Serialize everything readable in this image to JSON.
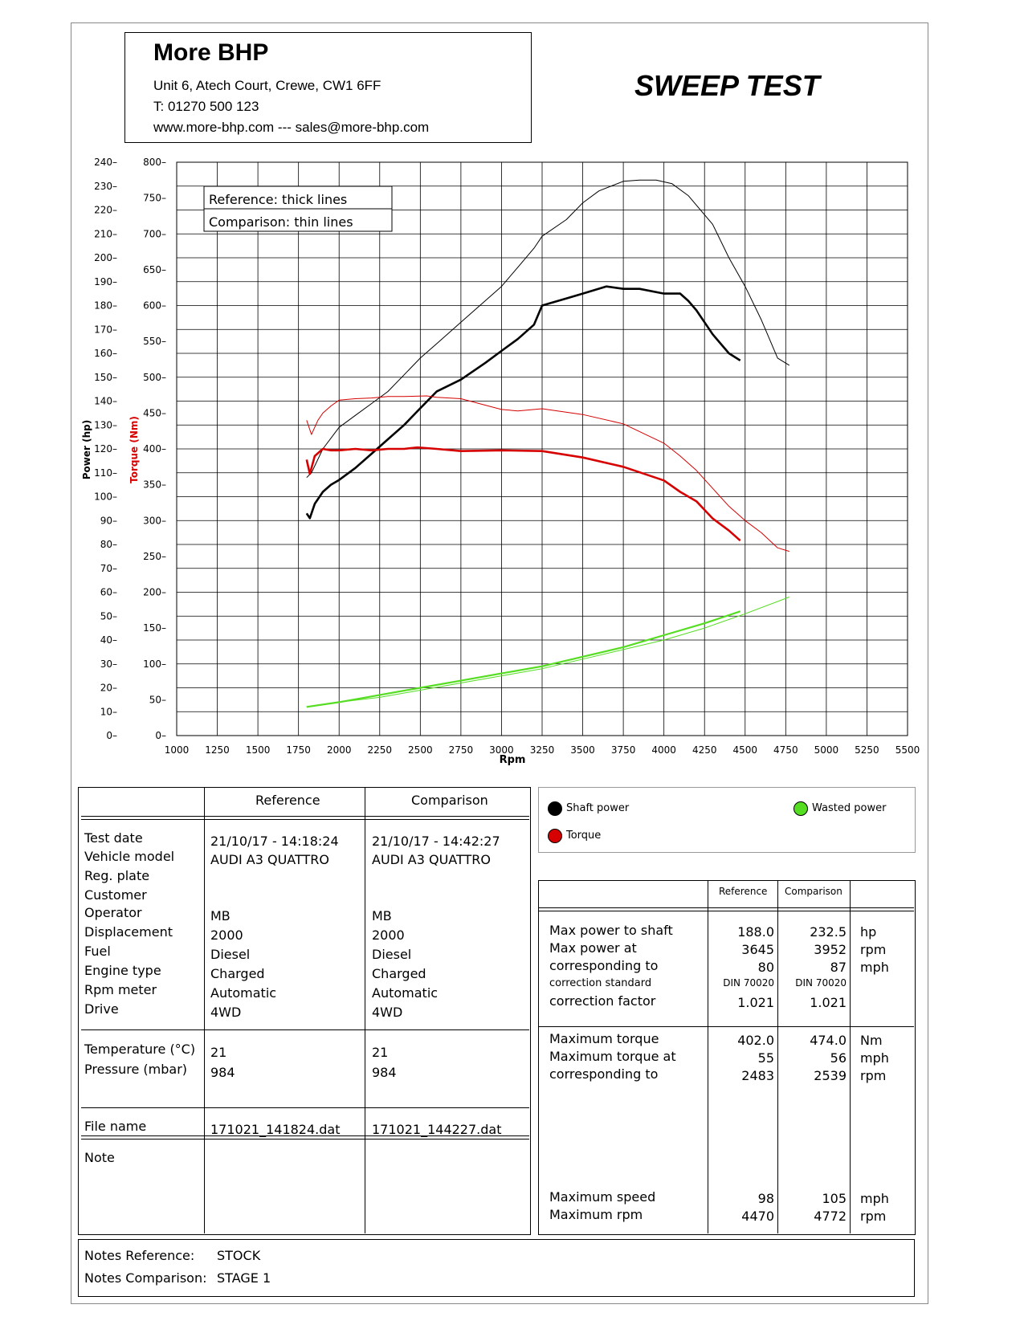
{
  "header": {
    "company": "More BHP",
    "address": "Unit 6, Atech Court, Crewe, CW1 6FF",
    "phone": "T: 01270 500 123",
    "web": "www.more-bhp.com --- sales@more-bhp.com",
    "test_title": "SWEEP TEST"
  },
  "chart_data": {
    "type": "line",
    "xlabel": "Rpm",
    "ylabel_power": "Power (hp)",
    "ylabel_torque": "Torque (Nm)",
    "xlim": [
      1000,
      5500
    ],
    "x_ticks": [
      1000,
      1250,
      1500,
      1750,
      2000,
      2250,
      2500,
      2750,
      3000,
      3250,
      3500,
      3750,
      4000,
      4250,
      4500,
      4750,
      5000,
      5250,
      5500
    ],
    "power_axis": {
      "ylim": [
        0,
        240
      ],
      "ticks": [
        0,
        10,
        20,
        30,
        40,
        50,
        60,
        70,
        80,
        90,
        100,
        110,
        120,
        130,
        140,
        150,
        160,
        170,
        180,
        190,
        200,
        210,
        220,
        230,
        240
      ]
    },
    "torque_axis": {
      "ylim": [
        0,
        800
      ],
      "ticks": [
        0,
        50,
        100,
        150,
        200,
        250,
        300,
        350,
        400,
        450,
        500,
        550,
        600,
        650,
        700,
        750,
        800
      ]
    },
    "legend_box": [
      "Reference: thick lines",
      "Comparison: thin lines"
    ],
    "grid": true,
    "colors": {
      "shaft": "#000000",
      "torque": "#d60000",
      "wasted": "#55dd22"
    },
    "series": [
      {
        "role": "shaft power reference",
        "axis": "power",
        "x": [
          1800,
          1820,
          1850,
          1900,
          1950,
          2000,
          2100,
          2200,
          2300,
          2400,
          2500,
          2600,
          2750,
          2900,
          3000,
          3100,
          3200,
          3250,
          3300,
          3400,
          3500,
          3645,
          3750,
          3850,
          4000,
          4100,
          4150,
          4200,
          4300,
          4400,
          4470
        ],
        "y": [
          93,
          91,
          97,
          102,
          105,
          107,
          112,
          118,
          124,
          130,
          137,
          144,
          149,
          156,
          161,
          166,
          172,
          180,
          181,
          183,
          185,
          188,
          187,
          187,
          185,
          185,
          182,
          178,
          168,
          160,
          157
        ]
      },
      {
        "role": "shaft power comparison",
        "axis": "power",
        "x": [
          1800,
          1830,
          1900,
          2000,
          2100,
          2200,
          2300,
          2400,
          2500,
          2600,
          2750,
          3000,
          3100,
          3200,
          3250,
          3400,
          3500,
          3600,
          3750,
          3850,
          3952,
          4050,
          4150,
          4300,
          4400,
          4500,
          4600,
          4700,
          4772
        ],
        "y": [
          108,
          110,
          120,
          129,
          134,
          139,
          144,
          151,
          158,
          164,
          173,
          188,
          196,
          204,
          209,
          216,
          223,
          228,
          232,
          232.5,
          232.5,
          231,
          226,
          214,
          200,
          188,
          174,
          158,
          155
        ]
      },
      {
        "role": "torque reference",
        "axis": "torque",
        "x": [
          1800,
          1820,
          1850,
          1900,
          1950,
          2000,
          2100,
          2200,
          2300,
          2400,
          2483,
          2600,
          2750,
          3000,
          3250,
          3500,
          3750,
          4000,
          4100,
          4200,
          4300,
          4400,
          4470
        ],
        "y": [
          385,
          365,
          390,
          400,
          398,
          398,
          400,
          398,
          400,
          400,
          402,
          400,
          397,
          398,
          397,
          388,
          375,
          356,
          340,
          327,
          303,
          286,
          272
        ]
      },
      {
        "role": "torque comparison",
        "axis": "torque",
        "x": [
          1800,
          1830,
          1870,
          1900,
          1950,
          2000,
          2100,
          2200,
          2300,
          2400,
          2539,
          2600,
          2750,
          3000,
          3100,
          3250,
          3500,
          3750,
          4000,
          4100,
          4200,
          4300,
          4400,
          4500,
          4600,
          4700,
          4772
        ],
        "y": [
          440,
          420,
          440,
          450,
          460,
          468,
          470,
          471,
          473,
          473,
          474,
          472,
          470,
          455,
          453,
          456,
          448,
          435,
          408,
          390,
          370,
          345,
          320,
          300,
          283,
          262,
          257
        ]
      },
      {
        "role": "wasted power reference",
        "axis": "power",
        "x": [
          1800,
          2000,
          2250,
          2500,
          2750,
          3000,
          3250,
          3500,
          3750,
          4000,
          4250,
          4470
        ],
        "y": [
          12,
          14,
          17,
          20,
          23,
          26,
          29,
          33,
          37,
          42,
          47,
          52
        ]
      },
      {
        "role": "wasted power comparison",
        "axis": "power",
        "x": [
          1800,
          2000,
          2250,
          2500,
          2750,
          3000,
          3250,
          3500,
          3750,
          4000,
          4250,
          4500,
          4772
        ],
        "y": [
          12,
          14,
          16,
          19,
          22,
          25,
          28,
          32,
          36,
          40,
          45,
          51,
          58
        ]
      }
    ]
  },
  "info_table": {
    "headers": {
      "reference": "Reference",
      "comparison": "Comparison"
    },
    "labels": {
      "test_date": "Test date",
      "vehicle_model": "Vehicle model",
      "reg_plate": "Reg. plate",
      "customer": "Customer",
      "operator": "Operator",
      "displacement": "Displacement",
      "fuel": "Fuel",
      "engine_type": "Engine type",
      "rpm_meter": "Rpm meter",
      "drive": "Drive",
      "temperature": "Temperature (°C)",
      "pressure": "Pressure (mbar)",
      "file_name": "File name",
      "note": "Note"
    },
    "reference": {
      "test_date": "21/10/17 - 14:18:24",
      "vehicle_model": "AUDI A3 QUATTRO",
      "operator": "MB",
      "displacement": "2000",
      "fuel": "Diesel",
      "engine_type": "Charged",
      "rpm_meter": "Automatic",
      "drive": "4WD",
      "temperature": "21",
      "pressure": "984",
      "file_name": "171021_141824.dat"
    },
    "comparison": {
      "test_date": "21/10/17 - 14:42:27",
      "vehicle_model": "AUDI A3 QUATTRO",
      "operator": "MB",
      "displacement": "2000",
      "fuel": "Diesel",
      "engine_type": "Charged",
      "rpm_meter": "Automatic",
      "drive": "4WD",
      "temperature": "21",
      "pressure": "984",
      "file_name": "171021_144227.dat"
    }
  },
  "legend": {
    "shaft": "Shaft power",
    "torque": "Torque",
    "wasted": "Wasted power"
  },
  "results": {
    "headers": {
      "reference": "Reference",
      "comparison": "Comparison"
    },
    "labels": {
      "max_power": "Max power to shaft",
      "max_power_at": "Max power at",
      "corresponding_to": "corresponding to",
      "correction_standard": "correction standard",
      "correction_factor": "correction factor",
      "max_torque": "Maximum torque",
      "max_torque_at": "Maximum torque at",
      "torque_corresponding": "corresponding to",
      "max_speed": "Maximum speed",
      "max_rpm": "Maximum rpm"
    },
    "reference": {
      "max_power": "188.0",
      "max_power_at": "3645",
      "corresponding_to": "80",
      "correction_standard": "DIN 70020",
      "correction_factor": "1.021",
      "max_torque": "402.0",
      "max_torque_at": "55",
      "torque_corresponding": "2483",
      "max_speed": "98",
      "max_rpm": "4470"
    },
    "comparison": {
      "max_power": "232.5",
      "max_power_at": "3952",
      "corresponding_to": "87",
      "correction_standard": "DIN 70020",
      "correction_factor": "1.021",
      "max_torque": "474.0",
      "max_torque_at": "56",
      "torque_corresponding": "2539",
      "max_speed": "105",
      "max_rpm": "4772"
    },
    "units": {
      "max_power": "hp",
      "max_power_at": "rpm",
      "corresponding_to": "mph",
      "max_torque": "Nm",
      "max_torque_at": "mph",
      "torque_corresponding": "rpm",
      "max_speed": "mph",
      "max_rpm": "rpm"
    }
  },
  "notes": {
    "reference_label": "Notes Reference:",
    "reference_value": "STOCK",
    "comparison_label": "Notes Comparison:",
    "comparison_value": "STAGE 1"
  }
}
